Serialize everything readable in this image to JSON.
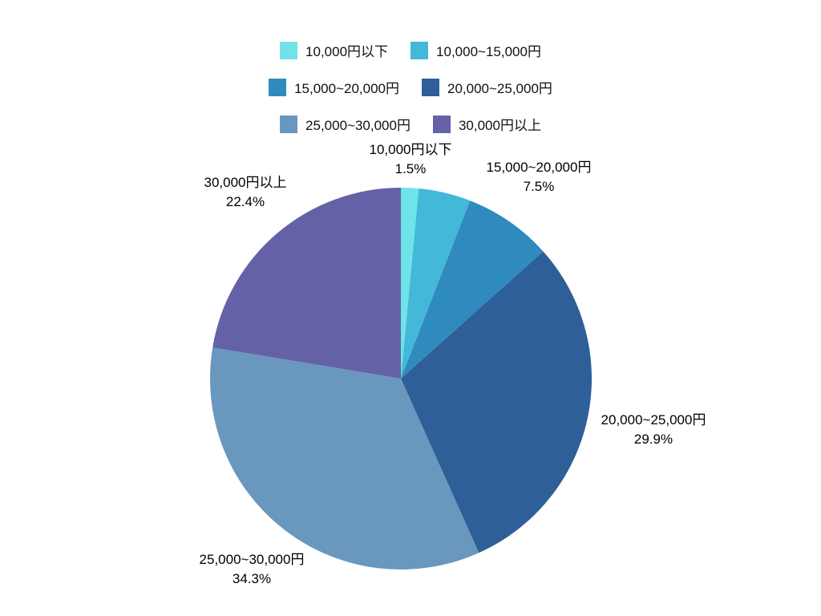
{
  "chart_data": {
    "type": "pie",
    "title": "",
    "legend_position": "top",
    "start": "12 o'clock",
    "direction": "clockwise",
    "slices": [
      {
        "label": "10,000円以下",
        "value": 1.5,
        "display": "1.5%",
        "color": "#6fe3e8"
      },
      {
        "label": "10,000~15,000円",
        "value": 4.4,
        "display": "",
        "color": "#43b8d8"
      },
      {
        "label": "15,000~20,000円",
        "value": 7.5,
        "display": "7.5%",
        "color": "#2f8bbd"
      },
      {
        "label": "20,000~25,000円",
        "value": 29.9,
        "display": "29.9%",
        "color": "#2e5f98"
      },
      {
        "label": "25,000~30,000円",
        "value": 34.3,
        "display": "34.3%",
        "color": "#6a97be"
      },
      {
        "label": "30,000円以上",
        "value": 22.4,
        "display": "22.4%",
        "color": "#6461a7"
      }
    ]
  }
}
